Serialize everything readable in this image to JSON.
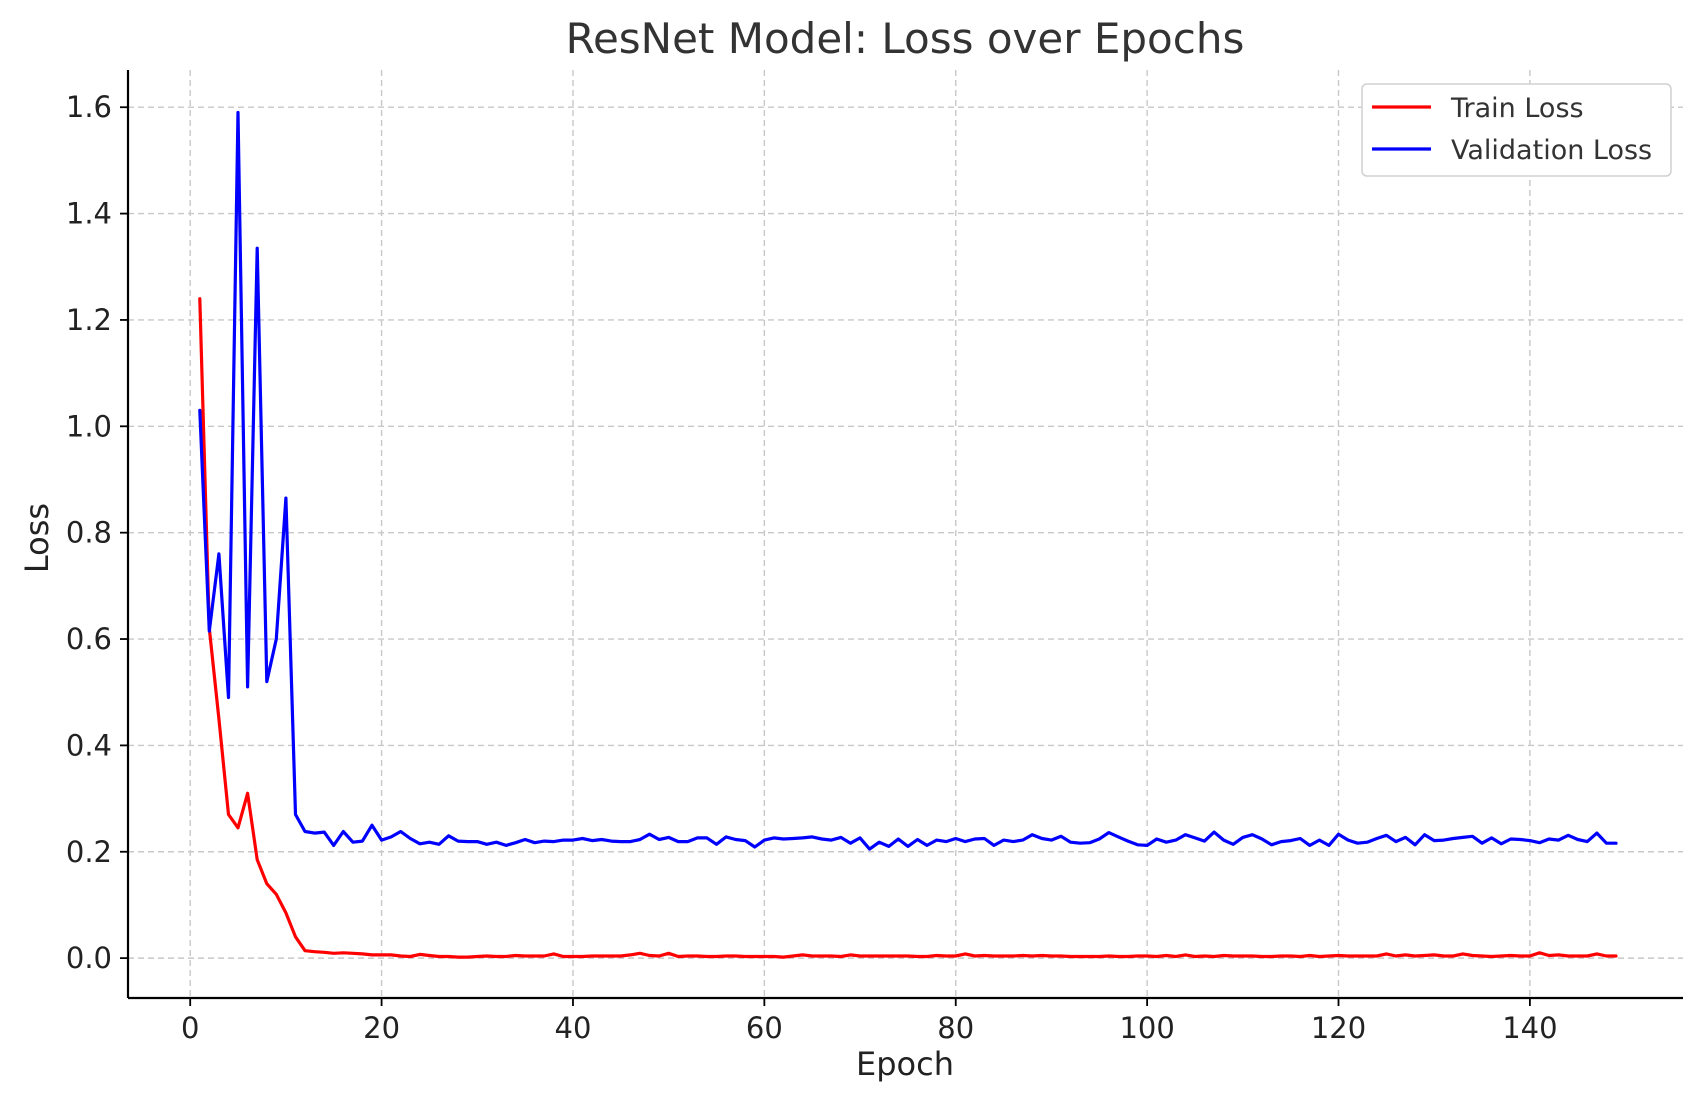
{
  "chart_data": {
    "type": "line",
    "title": "ResNet Model: Loss over Epochs",
    "xlabel": "Epoch",
    "ylabel": "Loss",
    "xlim": [
      -6.5,
      156
    ],
    "ylim": [
      -0.075,
      1.67
    ],
    "xticks": [
      0,
      20,
      40,
      60,
      80,
      100,
      120,
      140
    ],
    "yticks": [
      0.0,
      0.2,
      0.4,
      0.6,
      0.8,
      1.0,
      1.2,
      1.4,
      1.6
    ],
    "ytick_labels": [
      "0.0",
      "0.2",
      "0.4",
      "0.6",
      "0.8",
      "1.0",
      "1.2",
      "1.4",
      "1.6"
    ],
    "grid": true,
    "legend_position": "top-right",
    "series": [
      {
        "name": "Train Loss",
        "color": "#ff0000",
        "x": [
          1,
          2,
          3,
          4,
          5,
          6,
          7,
          8,
          9,
          10,
          11,
          12,
          13,
          14,
          15,
          16,
          17,
          18,
          19,
          20,
          21,
          22,
          23,
          24,
          25,
          26,
          27,
          28,
          29,
          30,
          31,
          32,
          33,
          34,
          35,
          36,
          37,
          38,
          39,
          40,
          41,
          42,
          43,
          44,
          45,
          46,
          47,
          48,
          49,
          50,
          51,
          52,
          53,
          54,
          55,
          56,
          57,
          58,
          59,
          60,
          61,
          62,
          63,
          64,
          65,
          66,
          67,
          68,
          69,
          70,
          71,
          72,
          73,
          74,
          75,
          76,
          77,
          78,
          79,
          80,
          81,
          82,
          83,
          84,
          85,
          86,
          87,
          88,
          89,
          90,
          91,
          92,
          93,
          94,
          95,
          96,
          97,
          98,
          99,
          100,
          101,
          102,
          103,
          104,
          105,
          106,
          107,
          108,
          109,
          110,
          111,
          112,
          113,
          114,
          115,
          116,
          117,
          118,
          119,
          120,
          121,
          122,
          123,
          124,
          125,
          126,
          127,
          128,
          129,
          130,
          131,
          132,
          133,
          134,
          135,
          136,
          137,
          138,
          139,
          140,
          141,
          142,
          143,
          144,
          145,
          146,
          147,
          148,
          149
        ],
        "values": [
          1.24,
          0.62,
          0.45,
          0.27,
          0.245,
          0.31,
          0.185,
          0.14,
          0.12,
          0.085,
          0.04,
          0.014,
          0.012,
          0.011,
          0.009,
          0.01,
          0.009,
          0.008,
          0.006,
          0.006,
          0.006,
          0.004,
          0.003,
          0.007,
          0.005,
          0.003,
          0.003,
          0.002,
          0.002,
          0.003,
          0.004,
          0.003,
          0.003,
          0.005,
          0.004,
          0.004,
          0.004,
          0.008,
          0.003,
          0.003,
          0.003,
          0.004,
          0.004,
          0.004,
          0.004,
          0.006,
          0.009,
          0.005,
          0.004,
          0.009,
          0.003,
          0.004,
          0.004,
          0.003,
          0.003,
          0.004,
          0.004,
          0.003,
          0.003,
          0.003,
          0.003,
          0.002,
          0.004,
          0.006,
          0.004,
          0.004,
          0.004,
          0.003,
          0.006,
          0.004,
          0.004,
          0.004,
          0.004,
          0.004,
          0.004,
          0.003,
          0.003,
          0.005,
          0.004,
          0.004,
          0.008,
          0.004,
          0.005,
          0.004,
          0.004,
          0.004,
          0.005,
          0.004,
          0.005,
          0.004,
          0.004,
          0.003,
          0.003,
          0.003,
          0.003,
          0.004,
          0.003,
          0.003,
          0.004,
          0.004,
          0.003,
          0.005,
          0.003,
          0.006,
          0.003,
          0.004,
          0.003,
          0.005,
          0.004,
          0.004,
          0.004,
          0.003,
          0.003,
          0.004,
          0.004,
          0.003,
          0.005,
          0.003,
          0.004,
          0.005,
          0.004,
          0.004,
          0.004,
          0.004,
          0.008,
          0.004,
          0.006,
          0.004,
          0.005,
          0.006,
          0.004,
          0.004,
          0.008,
          0.005,
          0.004,
          0.003,
          0.004,
          0.005,
          0.004,
          0.004,
          0.01,
          0.005,
          0.006,
          0.004,
          0.004,
          0.004,
          0.008,
          0.004,
          0.004
        ]
      },
      {
        "name": "Validation Loss",
        "color": "#0000ff",
        "x": [
          1,
          2,
          3,
          4,
          5,
          6,
          7,
          8,
          9,
          10,
          11,
          12,
          13,
          14,
          15,
          16,
          17,
          18,
          19,
          20,
          21,
          22,
          23,
          24,
          25,
          26,
          27,
          28,
          29,
          30,
          31,
          32,
          33,
          34,
          35,
          36,
          37,
          38,
          39,
          40,
          41,
          42,
          43,
          44,
          45,
          46,
          47,
          48,
          49,
          50,
          51,
          52,
          53,
          54,
          55,
          56,
          57,
          58,
          59,
          60,
          61,
          62,
          63,
          64,
          65,
          66,
          67,
          68,
          69,
          70,
          71,
          72,
          73,
          74,
          75,
          76,
          77,
          78,
          79,
          80,
          81,
          82,
          83,
          84,
          85,
          86,
          87,
          88,
          89,
          90,
          91,
          92,
          93,
          94,
          95,
          96,
          97,
          98,
          99,
          100,
          101,
          102,
          103,
          104,
          105,
          106,
          107,
          108,
          109,
          110,
          111,
          112,
          113,
          114,
          115,
          116,
          117,
          118,
          119,
          120,
          121,
          122,
          123,
          124,
          125,
          126,
          127,
          128,
          129,
          130,
          131,
          132,
          133,
          134,
          135,
          136,
          137,
          138,
          139,
          140,
          141,
          142,
          143,
          144,
          145,
          146,
          147,
          148,
          149
        ],
        "values": [
          1.03,
          0.615,
          0.76,
          0.49,
          1.59,
          0.51,
          1.335,
          0.52,
          0.6,
          0.865,
          0.27,
          0.238,
          0.235,
          0.237,
          0.212,
          0.238,
          0.218,
          0.22,
          0.25,
          0.222,
          0.228,
          0.238,
          0.225,
          0.215,
          0.218,
          0.214,
          0.23,
          0.22,
          0.219,
          0.219,
          0.214,
          0.218,
          0.212,
          0.217,
          0.223,
          0.217,
          0.22,
          0.219,
          0.222,
          0.222,
          0.225,
          0.221,
          0.223,
          0.22,
          0.219,
          0.219,
          0.223,
          0.233,
          0.223,
          0.227,
          0.219,
          0.219,
          0.226,
          0.226,
          0.214,
          0.228,
          0.223,
          0.221,
          0.209,
          0.222,
          0.226,
          0.224,
          0.225,
          0.226,
          0.228,
          0.224,
          0.222,
          0.227,
          0.216,
          0.226,
          0.205,
          0.218,
          0.21,
          0.224,
          0.21,
          0.223,
          0.212,
          0.222,
          0.219,
          0.225,
          0.219,
          0.224,
          0.225,
          0.212,
          0.222,
          0.219,
          0.222,
          0.232,
          0.225,
          0.222,
          0.229,
          0.218,
          0.216,
          0.217,
          0.224,
          0.236,
          0.228,
          0.22,
          0.213,
          0.212,
          0.224,
          0.218,
          0.222,
          0.232,
          0.226,
          0.22,
          0.237,
          0.222,
          0.214,
          0.227,
          0.232,
          0.224,
          0.213,
          0.219,
          0.221,
          0.225,
          0.212,
          0.222,
          0.212,
          0.233,
          0.222,
          0.216,
          0.218,
          0.225,
          0.231,
          0.219,
          0.227,
          0.213,
          0.232,
          0.221,
          0.222,
          0.225,
          0.227,
          0.229,
          0.216,
          0.226,
          0.215,
          0.224,
          0.223,
          0.221,
          0.217,
          0.224,
          0.222,
          0.231,
          0.223,
          0.219,
          0.235,
          0.216,
          0.216
        ]
      }
    ]
  }
}
